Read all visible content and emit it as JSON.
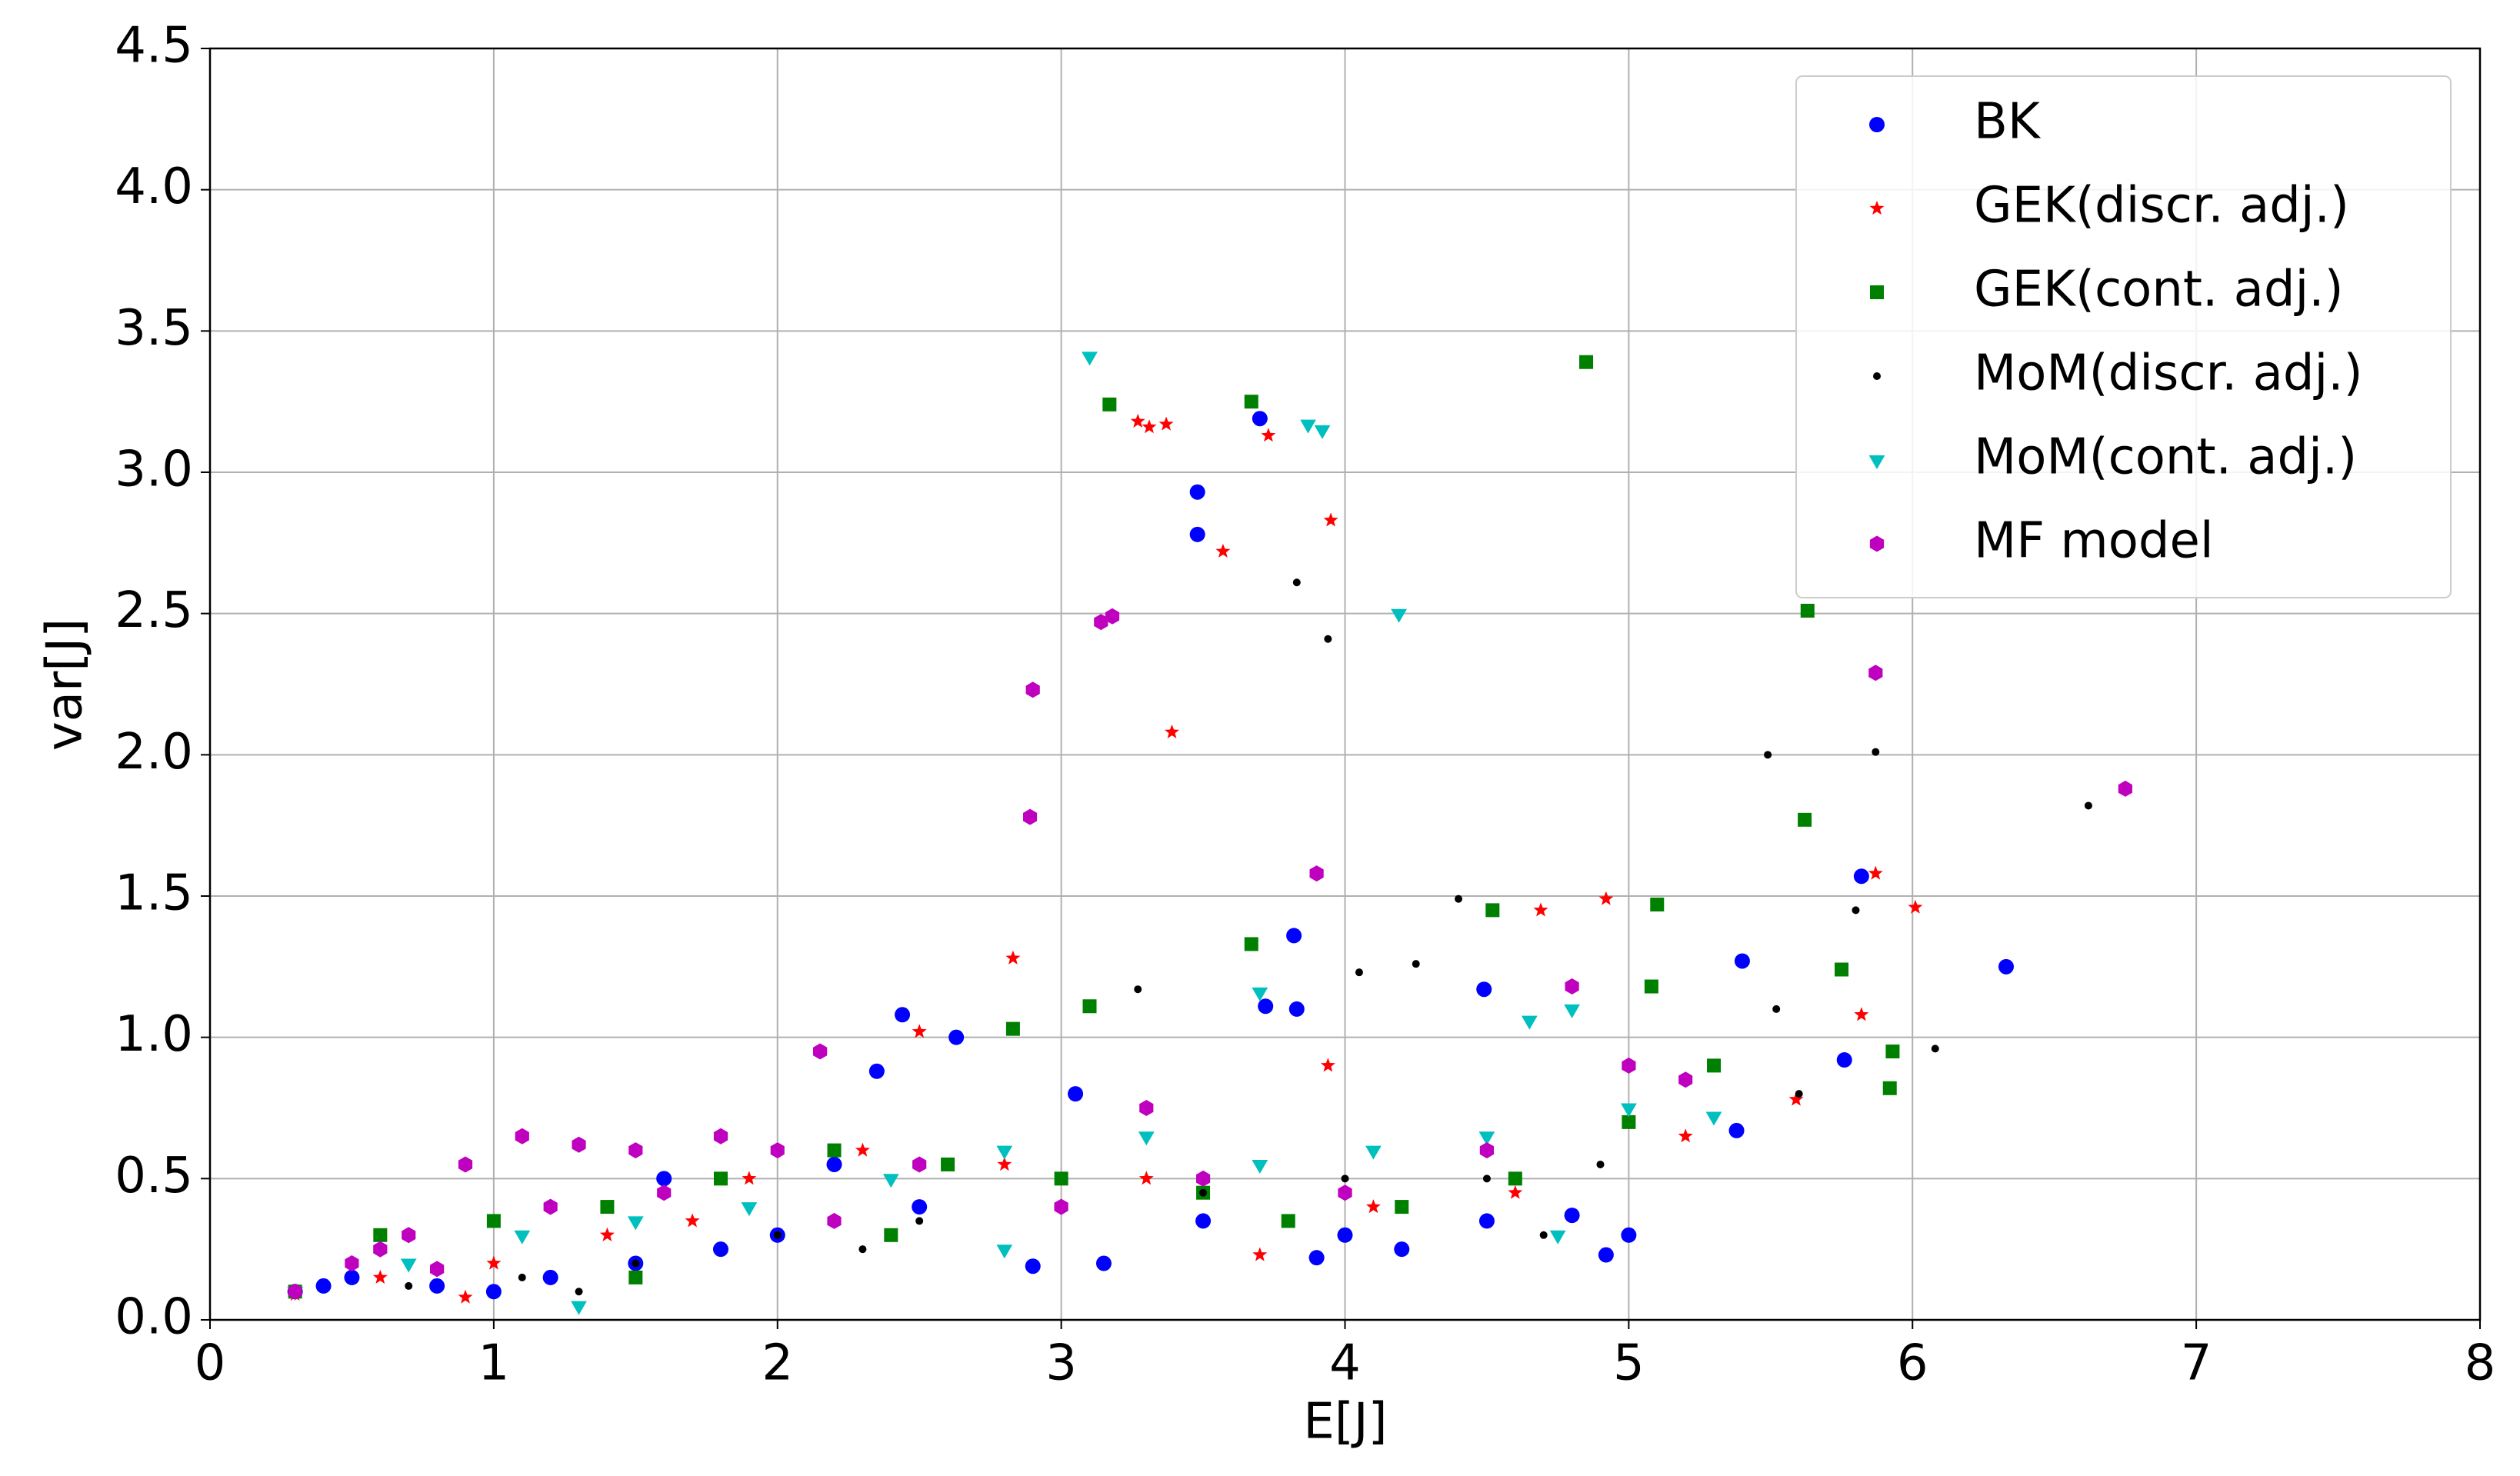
{
  "chart_data": {
    "type": "scatter",
    "x_label": "E[J]",
    "y_label": "var[J]",
    "xlim": [
      0,
      8
    ],
    "xticks": [
      0,
      1,
      2,
      3,
      4,
      5,
      6,
      7,
      8
    ],
    "ylim": [
      0,
      4.5
    ],
    "yticks": [
      {
        "value": 0,
        "label": "0.0"
      },
      0.5,
      {
        "value": 1,
        "label": "1.0"
      },
      1.5,
      {
        "value": 2,
        "label": "2.0"
      },
      2.5,
      {
        "value": 3,
        "label": "3.0"
      },
      3.5,
      {
        "value": 4,
        "label": "4.0"
      },
      4.5
    ],
    "grid": true,
    "legend": "upper right",
    "series": [
      {
        "name": "BK",
        "color": "#0000ff",
        "marker": "circle",
        "x": [
          3.7,
          3.48,
          3.48,
          5.82,
          6.33,
          3.82,
          3.72,
          3.83,
          2.44,
          2.63,
          5.4,
          4.49,
          5.76,
          5.38,
          4.92,
          5.0,
          4.2,
          3.9,
          2.9,
          3.15,
          2.35,
          3.05,
          0.3,
          0.5,
          0.8,
          1.0,
          1.2,
          1.5,
          1.8,
          2.0,
          2.5,
          3.5,
          4.0,
          4.5,
          4.8,
          1.6,
          2.2,
          0.4
        ],
        "y": [
          3.19,
          2.93,
          2.78,
          1.57,
          1.25,
          1.36,
          1.11,
          1.1,
          1.08,
          1.0,
          1.27,
          1.17,
          0.92,
          0.67,
          0.23,
          0.3,
          0.25,
          0.22,
          0.19,
          0.2,
          0.88,
          0.8,
          0.1,
          0.15,
          0.12,
          0.1,
          0.15,
          0.2,
          0.25,
          0.3,
          0.4,
          0.35,
          0.3,
          0.35,
          0.37,
          0.5,
          0.55,
          0.12
        ]
      },
      {
        "name": "GEK(discr. adj.)",
        "color": "#ff0000",
        "marker": "star",
        "x": [
          3.27,
          3.31,
          3.37,
          3.73,
          3.95,
          3.57,
          3.39,
          5.87,
          6.01,
          4.92,
          4.69,
          2.83,
          5.82,
          2.5,
          3.94,
          5.59,
          3.7,
          0.3,
          0.6,
          1.0,
          1.4,
          1.9,
          2.3,
          2.8,
          3.3,
          4.1,
          4.6,
          5.2,
          0.9,
          1.7
        ],
        "y": [
          3.18,
          3.16,
          3.17,
          3.13,
          2.83,
          2.72,
          2.08,
          1.58,
          1.46,
          1.49,
          1.45,
          1.28,
          1.08,
          1.02,
          0.9,
          0.78,
          0.23,
          0.09,
          0.15,
          0.2,
          0.3,
          0.5,
          0.6,
          0.55,
          0.5,
          0.4,
          0.45,
          0.65,
          0.08,
          0.35
        ]
      },
      {
        "name": "GEK(cont. adj.)",
        "color": "#008000",
        "marker": "square",
        "x": [
          4.85,
          3.17,
          3.67,
          5.63,
          5.62,
          5.75,
          4.52,
          5.1,
          3.67,
          3.1,
          5.93,
          5.92,
          2.83,
          5.08,
          0.3,
          0.6,
          1.0,
          1.4,
          1.8,
          2.2,
          2.6,
          3.0,
          3.5,
          3.8,
          4.2,
          4.6,
          5.0,
          5.3,
          1.5,
          2.4
        ],
        "y": [
          3.39,
          3.24,
          3.25,
          2.51,
          1.77,
          1.24,
          1.45,
          1.47,
          1.33,
          1.11,
          0.95,
          0.82,
          1.03,
          1.18,
          0.1,
          0.3,
          0.35,
          0.4,
          0.5,
          0.6,
          0.55,
          0.5,
          0.45,
          0.35,
          0.4,
          0.5,
          0.7,
          0.9,
          0.15,
          0.3
        ]
      },
      {
        "name": "MoM(discr. adj.)",
        "color": "#000000",
        "marker": "dot",
        "x": [
          3.83,
          3.94,
          5.49,
          5.87,
          6.62,
          4.4,
          5.8,
          4.05,
          4.25,
          3.27,
          6.08,
          5.52,
          5.6,
          0.3,
          0.7,
          1.1,
          1.5,
          2.0,
          2.5,
          3.0,
          3.5,
          4.0,
          4.5,
          4.9,
          1.3,
          2.3,
          4.7
        ],
        "y": [
          2.61,
          2.41,
          2.0,
          2.01,
          1.82,
          1.49,
          1.45,
          1.23,
          1.26,
          1.17,
          0.96,
          1.1,
          0.8,
          0.09,
          0.12,
          0.15,
          0.2,
          0.3,
          0.35,
          0.4,
          0.45,
          0.5,
          0.5,
          0.55,
          0.1,
          0.25,
          0.3
        ]
      },
      {
        "name": "MoM(cont. adj.)",
        "color": "#00bfbf",
        "marker": "triangle-down",
        "x": [
          3.1,
          3.87,
          3.92,
          4.19,
          3.7,
          4.65,
          4.8,
          0.3,
          0.7,
          1.1,
          1.5,
          1.9,
          2.4,
          2.8,
          3.3,
          3.7,
          4.1,
          4.5,
          5.0,
          5.3,
          2.8,
          4.75,
          1.3
        ],
        "y": [
          3.41,
          3.17,
          3.15,
          2.5,
          1.16,
          1.06,
          1.1,
          0.1,
          0.2,
          0.3,
          0.35,
          0.4,
          0.5,
          0.6,
          0.65,
          0.55,
          0.6,
          0.65,
          0.75,
          0.72,
          0.25,
          0.3,
          0.05
        ]
      },
      {
        "name": "MF model",
        "color": "#bf00bf",
        "marker": "hexagon",
        "x": [
          6.75,
          5.87,
          2.9,
          2.89,
          3.14,
          3.18,
          3.9,
          4.8,
          2.15,
          0.3,
          0.5,
          0.7,
          0.9,
          1.1,
          1.3,
          1.5,
          1.8,
          2.0,
          2.5,
          3.0,
          3.5,
          4.0,
          4.5,
          5.0,
          5.2,
          0.6,
          0.8,
          1.2,
          1.6,
          2.2,
          3.3
        ],
        "y": [
          1.88,
          2.29,
          2.23,
          1.78,
          2.47,
          2.49,
          1.58,
          1.18,
          0.95,
          0.1,
          0.2,
          0.3,
          0.55,
          0.65,
          0.62,
          0.6,
          0.65,
          0.6,
          0.55,
          0.4,
          0.5,
          0.45,
          0.6,
          0.9,
          0.85,
          0.25,
          0.18,
          0.4,
          0.45,
          0.35,
          0.75
        ]
      }
    ]
  }
}
